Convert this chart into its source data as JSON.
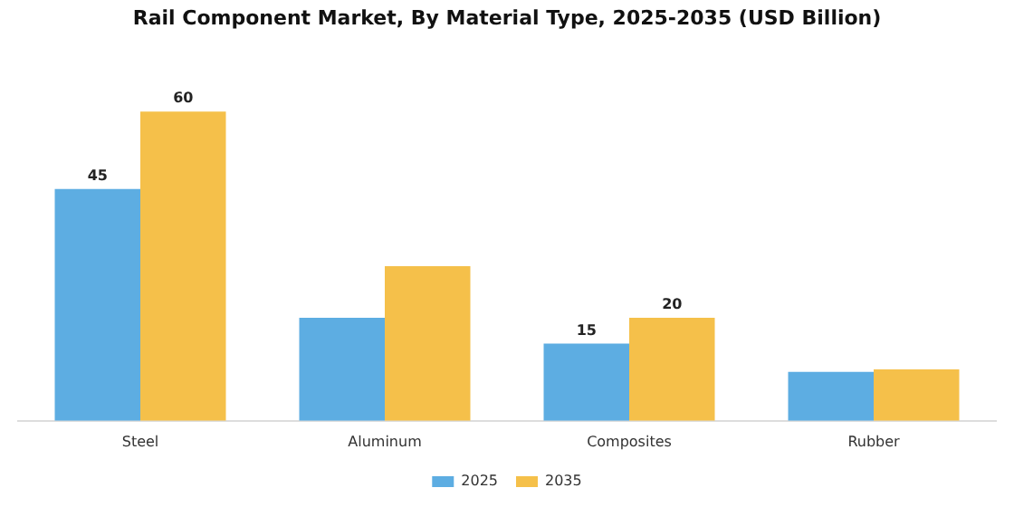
{
  "chart_data": {
    "type": "bar",
    "title": "Rail Component Market, By Material Type, 2025-2035 (USD Billion)",
    "categories": [
      "Steel",
      "Aluminum",
      "Composites",
      "Rubber"
    ],
    "series": [
      {
        "name": "2025",
        "color": "#5dade2",
        "values": [
          45,
          20,
          15,
          9.5
        ],
        "value_labels": [
          "45",
          null,
          "15",
          null
        ]
      },
      {
        "name": "2035",
        "color": "#f5c04a",
        "values": [
          60,
          30,
          20,
          10
        ],
        "value_labels": [
          "60",
          null,
          "20",
          null
        ]
      }
    ],
    "grid": false,
    "legend": "bottom",
    "tick_labels": "x"
  }
}
